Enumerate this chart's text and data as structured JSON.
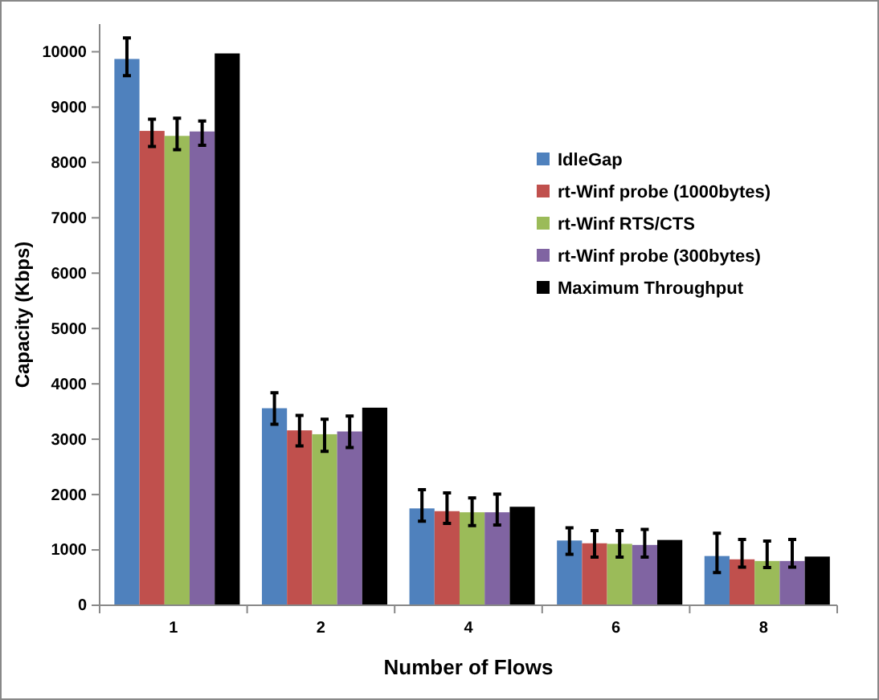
{
  "chart_data": {
    "type": "bar",
    "xlabel": "Number of Flows",
    "ylabel": "Capacity (Kbps)",
    "categories": [
      "1",
      "2",
      "4",
      "6",
      "8"
    ],
    "ylim": [
      0,
      10500
    ],
    "yticks": [
      0,
      1000,
      2000,
      3000,
      4000,
      5000,
      6000,
      7000,
      8000,
      9000,
      10000
    ],
    "grid": false,
    "legend": "right",
    "series": [
      {
        "name": "IdleGap",
        "color": "#4f81bd",
        "values": [
          9870,
          3560,
          1750,
          1170,
          890
        ],
        "errors": [
          [
            9570,
            10250
          ],
          [
            3270,
            3840
          ],
          [
            1520,
            2090
          ],
          [
            920,
            1400
          ],
          [
            590,
            1300
          ]
        ]
      },
      {
        "name": "rt-Winf probe (1000bytes)",
        "color": "#c0504d",
        "values": [
          8570,
          3160,
          1700,
          1120,
          830
        ],
        "errors": [
          [
            8290,
            8780
          ],
          [
            2880,
            3430
          ],
          [
            1480,
            2030
          ],
          [
            870,
            1350
          ],
          [
            690,
            1190
          ]
        ]
      },
      {
        "name": "rt-Winf RTS/CTS",
        "color": "#9bbb59",
        "values": [
          8480,
          3090,
          1680,
          1110,
          800
        ],
        "errors": [
          [
            8230,
            8800
          ],
          [
            2780,
            3360
          ],
          [
            1440,
            1940
          ],
          [
            870,
            1350
          ],
          [
            680,
            1160
          ]
        ]
      },
      {
        "name": "rt-Winf probe (300bytes)",
        "color": "#8064a2",
        "values": [
          8560,
          3140,
          1680,
          1090,
          800
        ],
        "errors": [
          [
            8310,
            8750
          ],
          [
            2850,
            3420
          ],
          [
            1450,
            2010
          ],
          [
            870,
            1370
          ],
          [
            690,
            1190
          ]
        ]
      },
      {
        "name": "Maximum Throughput",
        "color": "#000000",
        "values": [
          9970,
          3570,
          1780,
          1180,
          880
        ]
      }
    ]
  }
}
